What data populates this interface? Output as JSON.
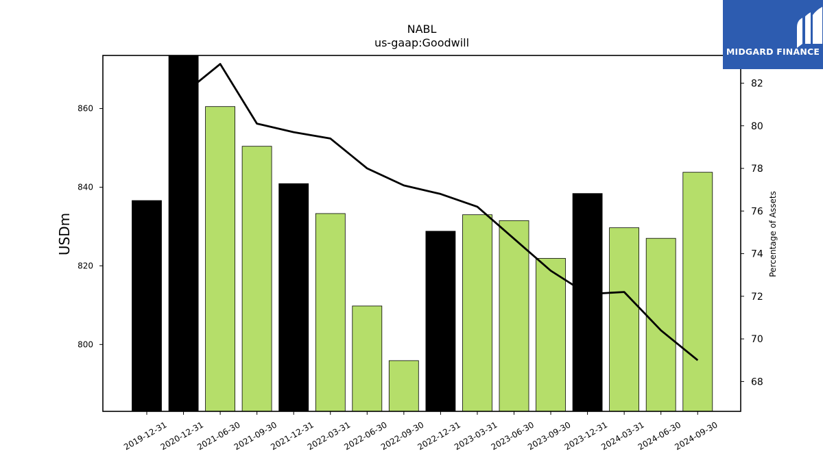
{
  "chart_data": {
    "type": "bar",
    "title": "NABL",
    "subtitle": "us-gaap:Goodwill",
    "ylabel_left": "USDm",
    "ylabel_right": "Percentage of Assets",
    "categories": [
      "2019-12-31",
      "2020-12-31",
      "2021-06-30",
      "2021-09-30",
      "2021-12-31",
      "2022-03-31",
      "2022-06-30",
      "2022-09-30",
      "2022-12-31",
      "2023-03-31",
      "2023-06-30",
      "2023-09-30",
      "2023-12-31",
      "2024-03-31",
      "2024-06-30",
      "2024-09-30"
    ],
    "bars": {
      "values": [
        836.6,
        874.0,
        860.5,
        850.4,
        840.9,
        833.3,
        809.8,
        795.9,
        828.8,
        833.0,
        831.5,
        821.9,
        838.4,
        829.7,
        827.0,
        843.8
      ],
      "colors": [
        "#000000",
        "#000000",
        "#b5de6a",
        "#b5de6a",
        "#000000",
        "#b5de6a",
        "#b5de6a",
        "#b5de6a",
        "#000000",
        "#b5de6a",
        "#b5de6a",
        "#b5de6a",
        "#000000",
        "#b5de6a",
        "#b5de6a",
        "#b5de6a"
      ]
    },
    "line": {
      "values": [
        null,
        81.5,
        82.9,
        80.1,
        79.7,
        79.4,
        78.0,
        77.2,
        76.8,
        76.2,
        74.7,
        73.2,
        72.1,
        72.2,
        70.4,
        69.0
      ],
      "color": "#000000"
    },
    "y_left": {
      "min": 783,
      "max": 873.5,
      "ticks": [
        800,
        820,
        840,
        860
      ]
    },
    "y_right": {
      "min": 66.6,
      "max": 83.3,
      "ticks": [
        68,
        70,
        72,
        74,
        76,
        78,
        80,
        82
      ]
    },
    "grid": false
  },
  "logo": {
    "text": "MIDGARD FINANCE",
    "color": "#2d5cb0"
  }
}
